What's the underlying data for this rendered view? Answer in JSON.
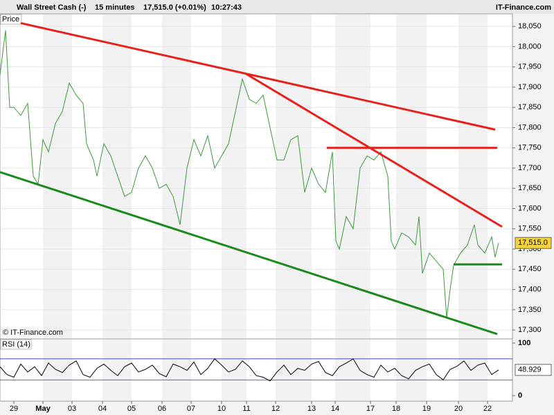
{
  "header": {
    "instrument": "Wall Street Cash (-)",
    "interval": "15 minutes",
    "price": "17,515.0 (+0.01%)",
    "time": "10:27:43",
    "brand": "IT-Finance.com"
  },
  "copyright": "© IT-Finance.com",
  "chart_data": [
    {
      "type": "line",
      "title": "Price",
      "color": "#3a9a3a",
      "x": [
        0,
        4,
        7,
        10,
        15,
        20,
        24,
        27.5,
        31,
        35,
        40,
        45,
        50,
        55,
        60,
        62.5,
        67.5,
        70,
        75,
        80,
        85,
        90,
        95,
        100,
        105,
        110,
        115,
        120,
        125,
        130,
        135,
        140,
        145,
        150,
        155,
        160,
        165,
        170,
        175,
        180,
        185,
        190,
        195,
        200,
        205,
        210,
        215,
        220,
        225,
        230,
        235,
        240,
        242.5,
        245,
        250,
        255,
        260,
        265,
        270,
        275,
        280,
        282.5,
        285,
        290,
        295,
        300,
        302.5,
        305,
        310,
        315,
        320,
        322.5,
        325,
        327.5,
        332.5,
        337.5,
        342.5,
        345,
        350,
        355,
        357.5,
        360
      ],
      "values": [
        17930,
        18040,
        17850,
        17850,
        17830,
        17860,
        17680,
        17660,
        17770,
        17740,
        17810,
        17840,
        17910,
        17880,
        17860,
        17760,
        17720,
        17680,
        17760,
        17730,
        17680,
        17630,
        17640,
        17700,
        17730,
        17700,
        17650,
        17660,
        17630,
        17560,
        17700,
        17770,
        17730,
        17780,
        17700,
        17730,
        17760,
        17840,
        17920,
        17870,
        17860,
        17880,
        17800,
        17720,
        17720,
        17770,
        17780,
        17640,
        17700,
        17660,
        17640,
        17740,
        17520,
        17500,
        17580,
        17550,
        17700,
        17730,
        17720,
        17740,
        17680,
        17520,
        17500,
        17540,
        17530,
        17510,
        17580,
        17440,
        17490,
        17470,
        17450,
        17330,
        17400,
        17460,
        17490,
        17510,
        17560,
        17510,
        17490,
        17530,
        17480,
        17515
      ],
      "xlim": [
        0,
        370
      ],
      "ylim": [
        17278,
        18081
      ],
      "yticks": [
        {
          "value": 18050,
          "label": "18,050"
        },
        {
          "value": 18000,
          "label": "18,000"
        },
        {
          "value": 17950,
          "label": "17,950"
        },
        {
          "value": 17900,
          "label": "17,900"
        },
        {
          "value": 17850,
          "label": "17,850"
        },
        {
          "value": 17800,
          "label": "17,800"
        },
        {
          "value": 17750,
          "label": "17,750"
        },
        {
          "value": 17700,
          "label": "17,700"
        },
        {
          "value": 17650,
          "label": "17,650"
        },
        {
          "value": 17600,
          "label": "17,600"
        },
        {
          "value": 17550,
          "label": "17,550"
        },
        {
          "value": 17500,
          "label": "17,500"
        },
        {
          "value": 17450,
          "label": "17,450"
        },
        {
          "value": 17400,
          "label": "17,400"
        },
        {
          "value": 17350,
          "label": "17,350"
        },
        {
          "value": 17300,
          "label": "17,300"
        }
      ],
      "xticks": [
        {
          "value": 10,
          "label": "29"
        },
        {
          "value": 31,
          "label": "May"
        },
        {
          "value": 52,
          "label": "03"
        },
        {
          "value": 74,
          "label": "04"
        },
        {
          "value": 95,
          "label": "05"
        },
        {
          "value": 117,
          "label": "06"
        },
        {
          "value": 138,
          "label": "07"
        },
        {
          "value": 160,
          "label": "10"
        },
        {
          "value": 178,
          "label": "11"
        },
        {
          "value": 199,
          "label": "12"
        },
        {
          "value": 225,
          "label": "13"
        },
        {
          "value": 242,
          "label": "14"
        },
        {
          "value": 267.5,
          "label": "17"
        },
        {
          "value": 286,
          "label": "18"
        },
        {
          "value": 308,
          "label": "19"
        },
        {
          "value": 331,
          "label": "20"
        },
        {
          "value": 352,
          "label": "22"
        }
      ],
      "last": {
        "value": 17515,
        "label": "17,515.0"
      },
      "trendlines": [
        {
          "color": "#e8201c",
          "x": [
            15,
            357.5
          ],
          "values": [
            18058,
            17795
          ]
        },
        {
          "color": "#e8201c",
          "x": [
            177.5,
            362.5
          ],
          "values": [
            17933,
            17555
          ]
        },
        {
          "color": "#e8201c",
          "x": [
            236,
            359
          ],
          "values": [
            17750,
            17750
          ]
        },
        {
          "color": "#1a8a1a",
          "x": [
            0,
            359
          ],
          "values": [
            17690,
            17290
          ]
        },
        {
          "color": "#1a8a1a",
          "x": [
            327.5,
            362.5
          ],
          "values": [
            17462,
            17462
          ]
        }
      ]
    },
    {
      "type": "line",
      "title": "RSI (14)",
      "color": "#000000",
      "x": [
        0,
        5,
        10,
        15,
        20,
        25,
        30,
        35,
        40,
        45,
        50,
        55,
        60,
        65,
        70,
        75,
        80,
        85,
        90,
        95,
        100,
        105,
        110,
        115,
        120,
        125,
        130,
        135,
        140,
        145,
        150,
        155,
        160,
        165,
        170,
        175,
        180,
        185,
        190,
        195,
        200,
        205,
        210,
        215,
        220,
        225,
        230,
        235,
        240,
        245,
        250,
        255,
        260,
        265,
        270,
        275,
        280,
        285,
        290,
        295,
        300,
        305,
        310,
        315,
        320,
        325,
        330,
        335,
        340,
        345,
        350,
        355,
        360
      ],
      "values": [
        55,
        40,
        35,
        60,
        45,
        55,
        38,
        62,
        50,
        44,
        58,
        66,
        40,
        35,
        52,
        60,
        48,
        38,
        55,
        62,
        45,
        50,
        58,
        42,
        36,
        60,
        55,
        48,
        64,
        40,
        52,
        70,
        58,
        45,
        50,
        66,
        55,
        38,
        35,
        28,
        45,
        58,
        40,
        52,
        48,
        60,
        65,
        44,
        38,
        55,
        62,
        70,
        48,
        40,
        35,
        58,
        45,
        52,
        38,
        32,
        48,
        55,
        60,
        40,
        30,
        50,
        56,
        66,
        48,
        58,
        62,
        40,
        48.929
      ],
      "xlim": [
        0,
        370
      ],
      "ylim": [
        -10.5,
        107.9
      ],
      "yticks": [
        100,
        0
      ],
      "levels": [
        30,
        70
      ],
      "last": {
        "value": 48.929
      }
    }
  ]
}
